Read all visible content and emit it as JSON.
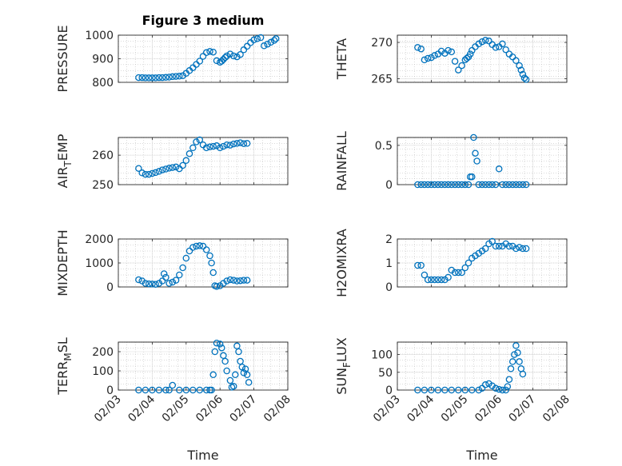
{
  "chart_data": [
    {
      "type": "scatter",
      "title": "Figure 3 medium",
      "ylabel": "PRESSURE",
      "xlabel": "",
      "xlim": [
        1,
        6
      ],
      "ylim": [
        800,
        1000
      ],
      "yticks": [
        800,
        900,
        1000
      ],
      "grid": true,
      "series": [
        {
          "x": [
            1.6,
            1.7,
            1.8,
            1.9,
            2.0,
            2.1,
            2.2,
            2.3,
            2.4,
            2.5,
            2.6,
            2.7,
            2.8,
            2.9,
            3.0,
            3.1,
            3.2,
            3.3,
            3.4,
            3.5,
            3.6,
            3.7,
            3.8,
            3.9,
            4.0,
            4.05,
            4.1,
            4.15,
            4.2,
            4.3,
            4.4,
            4.5,
            4.6,
            4.7,
            4.8,
            4.9,
            5.0,
            5.1,
            5.2,
            5.3,
            5.4,
            5.5,
            5.6,
            5.65
          ],
          "y": [
            820,
            820,
            819,
            819,
            819,
            819,
            820,
            820,
            821,
            822,
            824,
            825,
            826,
            828,
            838,
            850,
            862,
            876,
            890,
            910,
            926,
            931,
            928,
            892,
            885,
            890,
            897,
            905,
            912,
            920,
            912,
            908,
            918,
            938,
            953,
            968,
            980,
            985,
            990,
            955,
            962,
            970,
            978,
            985
          ]
        }
      ]
    },
    {
      "type": "scatter",
      "ylabel": "THETA",
      "xlabel": "",
      "xlim": [
        1,
        6
      ],
      "ylim": [
        264.5,
        271
      ],
      "yticks": [
        265,
        270
      ],
      "grid": true,
      "series": [
        {
          "x": [
            1.6,
            1.7,
            1.8,
            1.9,
            2.0,
            2.1,
            2.2,
            2.3,
            2.4,
            2.5,
            2.6,
            2.7,
            2.8,
            2.9,
            3.0,
            3.05,
            3.1,
            3.15,
            3.2,
            3.3,
            3.4,
            3.5,
            3.6,
            3.7,
            3.8,
            3.9,
            4.0,
            4.1,
            4.2,
            4.3,
            4.4,
            4.5,
            4.6,
            4.65,
            4.7,
            4.75,
            4.8
          ],
          "y": [
            269.3,
            269.1,
            267.6,
            267.8,
            267.9,
            268.2,
            268.4,
            268.8,
            268.5,
            268.9,
            268.7,
            267.4,
            266.2,
            266.8,
            267.6,
            267.8,
            268.0,
            268.4,
            268.9,
            269.4,
            269.8,
            270.1,
            270.3,
            270.2,
            269.7,
            269.3,
            269.4,
            269.8,
            269.0,
            268.4,
            268.0,
            267.5,
            266.8,
            266.2,
            265.6,
            265.1,
            264.9
          ]
        }
      ]
    },
    {
      "type": "scatter",
      "ylabel": "AIR_TEMP",
      "xlabel": "",
      "xlim": [
        1,
        6
      ],
      "ylim": [
        250,
        266
      ],
      "yticks": [
        250,
        260
      ],
      "grid": true,
      "series": [
        {
          "x": [
            1.6,
            1.7,
            1.8,
            1.9,
            2.0,
            2.1,
            2.2,
            2.3,
            2.4,
            2.5,
            2.6,
            2.7,
            2.8,
            2.9,
            3.0,
            3.1,
            3.2,
            3.3,
            3.4,
            3.5,
            3.6,
            3.7,
            3.8,
            3.9,
            4.0,
            4.1,
            4.2,
            4.3,
            4.4,
            4.5,
            4.6,
            4.7,
            4.8
          ],
          "y": [
            255.5,
            254.0,
            253.5,
            253.5,
            253.8,
            254.1,
            254.5,
            255.0,
            255.3,
            255.6,
            255.8,
            256.0,
            255.4,
            256.5,
            258.2,
            260.5,
            262.5,
            264.5,
            265.2,
            263.5,
            262.5,
            262.8,
            263.0,
            263.2,
            262.5,
            263.0,
            263.5,
            263.4,
            263.8,
            264.0,
            264.2,
            263.9,
            264.0
          ]
        }
      ]
    },
    {
      "type": "scatter",
      "ylabel": "RAINFALL",
      "xlabel": "",
      "xlim": [
        1,
        6
      ],
      "ylim": [
        0,
        0.6
      ],
      "yticks": [
        0,
        0.5
      ],
      "grid": true,
      "series": [
        {
          "x": [
            1.6,
            1.7,
            1.8,
            1.9,
            2.0,
            2.1,
            2.2,
            2.3,
            2.4,
            2.5,
            2.6,
            2.7,
            2.8,
            2.9,
            3.0,
            3.1,
            3.15,
            3.2,
            3.25,
            3.3,
            3.35,
            3.4,
            3.5,
            3.6,
            3.7,
            3.8,
            3.9,
            4.0,
            4.1,
            4.2,
            4.3,
            4.4,
            4.5,
            4.6,
            4.7,
            4.8
          ],
          "y": [
            0,
            0,
            0,
            0,
            0,
            0,
            0,
            0,
            0,
            0,
            0,
            0,
            0,
            0,
            0,
            0,
            0.1,
            0.1,
            0.6,
            0.4,
            0.3,
            0,
            0,
            0,
            0,
            0,
            0,
            0.2,
            0,
            0,
            0,
            0,
            0,
            0,
            0,
            0
          ]
        }
      ]
    },
    {
      "type": "scatter",
      "ylabel": "MIXDEPTH",
      "xlabel": "",
      "xlim": [
        1,
        6
      ],
      "ylim": [
        0,
        2000
      ],
      "yticks": [
        0,
        1000,
        2000
      ],
      "grid": true,
      "series": [
        {
          "x": [
            1.6,
            1.7,
            1.8,
            1.9,
            2.0,
            2.1,
            2.2,
            2.3,
            2.35,
            2.4,
            2.5,
            2.6,
            2.7,
            2.8,
            2.9,
            3.0,
            3.1,
            3.2,
            3.3,
            3.4,
            3.5,
            3.6,
            3.7,
            3.75,
            3.8,
            3.85,
            3.9,
            4.0,
            4.1,
            4.2,
            4.3,
            4.4,
            4.5,
            4.6,
            4.7,
            4.8
          ],
          "y": [
            300,
            250,
            150,
            130,
            120,
            110,
            150,
            250,
            550,
            400,
            150,
            200,
            280,
            500,
            800,
            1200,
            1500,
            1650,
            1700,
            1720,
            1700,
            1550,
            1300,
            1000,
            600,
            50,
            20,
            50,
            150,
            250,
            300,
            280,
            250,
            260,
            280,
            280
          ]
        }
      ]
    },
    {
      "type": "scatter",
      "ylabel": "H2OMIXRA",
      "xlabel": "",
      "xlim": [
        1,
        6
      ],
      "ylim": [
        0,
        2
      ],
      "yticks": [
        0,
        1,
        2
      ],
      "grid": true,
      "series": [
        {
          "x": [
            1.6,
            1.7,
            1.8,
            1.9,
            2.0,
            2.1,
            2.2,
            2.3,
            2.4,
            2.5,
            2.6,
            2.7,
            2.8,
            2.9,
            3.0,
            3.1,
            3.2,
            3.3,
            3.4,
            3.5,
            3.6,
            3.7,
            3.8,
            3.9,
            4.0,
            4.1,
            4.2,
            4.3,
            4.4,
            4.5,
            4.6,
            4.7,
            4.8
          ],
          "y": [
            0.9,
            0.9,
            0.5,
            0.3,
            0.3,
            0.3,
            0.3,
            0.3,
            0.3,
            0.4,
            0.7,
            0.6,
            0.6,
            0.6,
            0.8,
            1.0,
            1.2,
            1.3,
            1.4,
            1.5,
            1.6,
            1.8,
            1.9,
            1.7,
            1.7,
            1.7,
            1.8,
            1.7,
            1.7,
            1.6,
            1.65,
            1.6,
            1.6
          ]
        }
      ]
    },
    {
      "type": "scatter",
      "ylabel": "TERR_MSL",
      "xlabel": "Time",
      "xlim": [
        1,
        6
      ],
      "ylim": [
        0,
        250
      ],
      "yticks": [
        0,
        100,
        200
      ],
      "xticks": [
        1,
        2,
        3,
        4,
        5,
        6
      ],
      "xticklabels": [
        "02/03",
        "02/04",
        "02/05",
        "02/06",
        "02/07",
        "02/08"
      ],
      "grid": true,
      "series": [
        {
          "x": [
            1.6,
            1.8,
            2.0,
            2.2,
            2.4,
            2.5,
            2.6,
            2.8,
            3.0,
            3.2,
            3.4,
            3.6,
            3.7,
            3.75,
            3.8,
            3.85,
            3.9,
            4.0,
            4.05,
            4.1,
            4.15,
            4.2,
            4.3,
            4.35,
            4.4,
            4.45,
            4.5,
            4.55,
            4.6,
            4.65,
            4.7,
            4.75,
            4.8,
            4.85
          ],
          "y": [
            0,
            0,
            0,
            0,
            0,
            0,
            25,
            0,
            0,
            0,
            0,
            0,
            0,
            0,
            80,
            200,
            245,
            240,
            220,
            180,
            150,
            100,
            50,
            15,
            20,
            80,
            230,
            200,
            150,
            120,
            90,
            110,
            80,
            40
          ]
        }
      ]
    },
    {
      "type": "scatter",
      "ylabel": "SUN_FLUX",
      "xlabel": "Time",
      "xlim": [
        1,
        6
      ],
      "ylim": [
        0,
        135
      ],
      "yticks": [
        0,
        50,
        100
      ],
      "xticks": [
        1,
        2,
        3,
        4,
        5,
        6
      ],
      "xticklabels": [
        "02/03",
        "02/04",
        "02/05",
        "02/06",
        "02/07",
        "02/08"
      ],
      "grid": true,
      "series": [
        {
          "x": [
            1.6,
            1.8,
            2.0,
            2.2,
            2.4,
            2.6,
            2.8,
            3.0,
            3.2,
            3.4,
            3.5,
            3.6,
            3.7,
            3.8,
            3.9,
            4.0,
            4.1,
            4.2,
            4.25,
            4.3,
            4.35,
            4.4,
            4.45,
            4.5,
            4.55,
            4.6,
            4.65,
            4.7
          ],
          "y": [
            0,
            0,
            0,
            0,
            0,
            0,
            0,
            0,
            0,
            0,
            5,
            15,
            18,
            12,
            5,
            2,
            0,
            0,
            10,
            30,
            60,
            80,
            100,
            125,
            105,
            80,
            60,
            45
          ]
        }
      ]
    }
  ],
  "colors": {
    "marker": "#0072BD",
    "axes": "#262626",
    "background": "#ffffff"
  }
}
